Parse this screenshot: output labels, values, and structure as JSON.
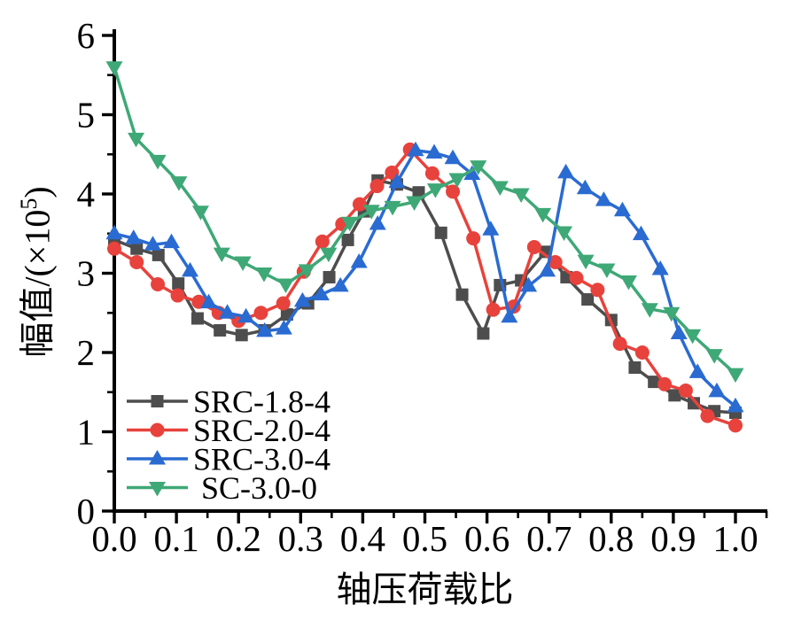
{
  "figure": {
    "ylabel_base": "幅值/(×10",
    "ylabel_exp": "5",
    "ylabel_close": ")"
  },
  "chart_data": {
    "type": "line",
    "title": "",
    "xlabel": "轴压荷载比",
    "ylabel": "幅值/(×10⁵)",
    "xlim": [
      0,
      1
    ],
    "ylim": [
      0,
      6
    ],
    "grid": false,
    "background": "#ffffff",
    "axis_color": "#000000",
    "x_minor_step": 0.05,
    "y_minor_step": 0.5,
    "xticks": {
      "values": [
        0,
        0.1,
        0.2,
        0.3,
        0.4,
        0.5,
        0.6,
        0.7,
        0.8,
        0.9,
        1.0
      ],
      "labels": [
        "0.0",
        "0.1",
        "0.2",
        "0.3",
        "0.4",
        "0.5",
        "0.6",
        "0.7",
        "0.8",
        "0.9",
        "1.0"
      ]
    },
    "yticks": {
      "values": [
        0,
        1,
        2,
        3,
        4,
        5,
        6
      ],
      "labels": [
        "0",
        "1",
        "2",
        "3",
        "4",
        "5",
        "6"
      ]
    },
    "legend": {
      "position": "inside-lower-left",
      "border": false
    },
    "series": [
      {
        "name": "SRC-1.8-4",
        "label": "SRC-1.8-4",
        "color": "#4d4d4d",
        "marker": "square",
        "points": [
          [
            0.0,
            3.42
          ],
          [
            0.036,
            3.31
          ],
          [
            0.071,
            3.23
          ],
          [
            0.103,
            2.87
          ],
          [
            0.134,
            2.43
          ],
          [
            0.17,
            2.28
          ],
          [
            0.205,
            2.22
          ],
          [
            0.242,
            2.28
          ],
          [
            0.278,
            2.48
          ],
          [
            0.312,
            2.62
          ],
          [
            0.346,
            2.95
          ],
          [
            0.376,
            3.42
          ],
          [
            0.402,
            3.78
          ],
          [
            0.424,
            4.17
          ],
          [
            0.455,
            4.12
          ],
          [
            0.49,
            4.02
          ],
          [
            0.526,
            3.51
          ],
          [
            0.56,
            2.73
          ],
          [
            0.594,
            2.24
          ],
          [
            0.621,
            2.85
          ],
          [
            0.655,
            2.91
          ],
          [
            0.694,
            3.27
          ],
          [
            0.728,
            2.95
          ],
          [
            0.762,
            2.67
          ],
          [
            0.8,
            2.41
          ],
          [
            0.838,
            1.81
          ],
          [
            0.869,
            1.63
          ],
          [
            0.902,
            1.46
          ],
          [
            0.933,
            1.36
          ],
          [
            0.966,
            1.26
          ],
          [
            1.0,
            1.24
          ]
        ]
      },
      {
        "name": "SRC-2.0-4",
        "label": "SRC-2.0-4",
        "color": "#e8423c",
        "marker": "circle",
        "points": [
          [
            0.0,
            3.31
          ],
          [
            0.036,
            3.14
          ],
          [
            0.07,
            2.86
          ],
          [
            0.102,
            2.72
          ],
          [
            0.136,
            2.64
          ],
          [
            0.168,
            2.5
          ],
          [
            0.2,
            2.4
          ],
          [
            0.236,
            2.5
          ],
          [
            0.272,
            2.62
          ],
          [
            0.305,
            3.02
          ],
          [
            0.335,
            3.4
          ],
          [
            0.367,
            3.62
          ],
          [
            0.395,
            3.87
          ],
          [
            0.423,
            4.1
          ],
          [
            0.447,
            4.27
          ],
          [
            0.476,
            4.56
          ],
          [
            0.512,
            4.26
          ],
          [
            0.545,
            4.03
          ],
          [
            0.578,
            3.44
          ],
          [
            0.61,
            2.54
          ],
          [
            0.643,
            2.58
          ],
          [
            0.676,
            3.33
          ],
          [
            0.71,
            3.14
          ],
          [
            0.744,
            2.94
          ],
          [
            0.778,
            2.79
          ],
          [
            0.814,
            2.11
          ],
          [
            0.85,
            2.0
          ],
          [
            0.886,
            1.6
          ],
          [
            0.92,
            1.52
          ],
          [
            0.955,
            1.2
          ],
          [
            1.0,
            1.08
          ]
        ]
      },
      {
        "name": "SRC-3.0-4",
        "label": "SRC-3.0-4",
        "color": "#2a6bd2",
        "marker": "triangle-up",
        "points": [
          [
            0.0,
            3.5
          ],
          [
            0.031,
            3.44
          ],
          [
            0.062,
            3.36
          ],
          [
            0.092,
            3.39
          ],
          [
            0.122,
            3.03
          ],
          [
            0.152,
            2.63
          ],
          [
            0.182,
            2.5
          ],
          [
            0.212,
            2.45
          ],
          [
            0.242,
            2.27
          ],
          [
            0.273,
            2.3
          ],
          [
            0.303,
            2.65
          ],
          [
            0.333,
            2.73
          ],
          [
            0.364,
            2.84
          ],
          [
            0.394,
            3.14
          ],
          [
            0.424,
            3.62
          ],
          [
            0.455,
            4.15
          ],
          [
            0.485,
            4.55
          ],
          [
            0.515,
            4.52
          ],
          [
            0.545,
            4.45
          ],
          [
            0.576,
            4.25
          ],
          [
            0.606,
            3.55
          ],
          [
            0.636,
            2.45
          ],
          [
            0.667,
            2.84
          ],
          [
            0.697,
            3.03
          ],
          [
            0.727,
            4.27
          ],
          [
            0.758,
            4.07
          ],
          [
            0.788,
            3.92
          ],
          [
            0.818,
            3.79
          ],
          [
            0.848,
            3.49
          ],
          [
            0.879,
            3.05
          ],
          [
            0.909,
            2.24
          ],
          [
            0.939,
            1.75
          ],
          [
            0.97,
            1.51
          ],
          [
            1.0,
            1.32
          ]
        ]
      },
      {
        "name": "SC-3.0-0",
        "label": " SC-3.0-0",
        "color": "#3ea876",
        "marker": "triangle-down",
        "points": [
          [
            0.0,
            5.6
          ],
          [
            0.035,
            4.7
          ],
          [
            0.07,
            4.42
          ],
          [
            0.104,
            4.15
          ],
          [
            0.139,
            3.78
          ],
          [
            0.173,
            3.25
          ],
          [
            0.207,
            3.14
          ],
          [
            0.241,
            3.0
          ],
          [
            0.276,
            2.86
          ],
          [
            0.31,
            3.04
          ],
          [
            0.345,
            3.25
          ],
          [
            0.379,
            3.64
          ],
          [
            0.414,
            3.79
          ],
          [
            0.448,
            3.84
          ],
          [
            0.483,
            3.9
          ],
          [
            0.517,
            4.06
          ],
          [
            0.552,
            4.19
          ],
          [
            0.586,
            4.35
          ],
          [
            0.621,
            4.09
          ],
          [
            0.655,
            4.0
          ],
          [
            0.69,
            3.75
          ],
          [
            0.724,
            3.52
          ],
          [
            0.759,
            3.16
          ],
          [
            0.793,
            3.05
          ],
          [
            0.828,
            2.9
          ],
          [
            0.862,
            2.55
          ],
          [
            0.897,
            2.5
          ],
          [
            0.931,
            2.22
          ],
          [
            0.966,
            1.97
          ],
          [
            1.0,
            1.73
          ]
        ]
      }
    ]
  }
}
